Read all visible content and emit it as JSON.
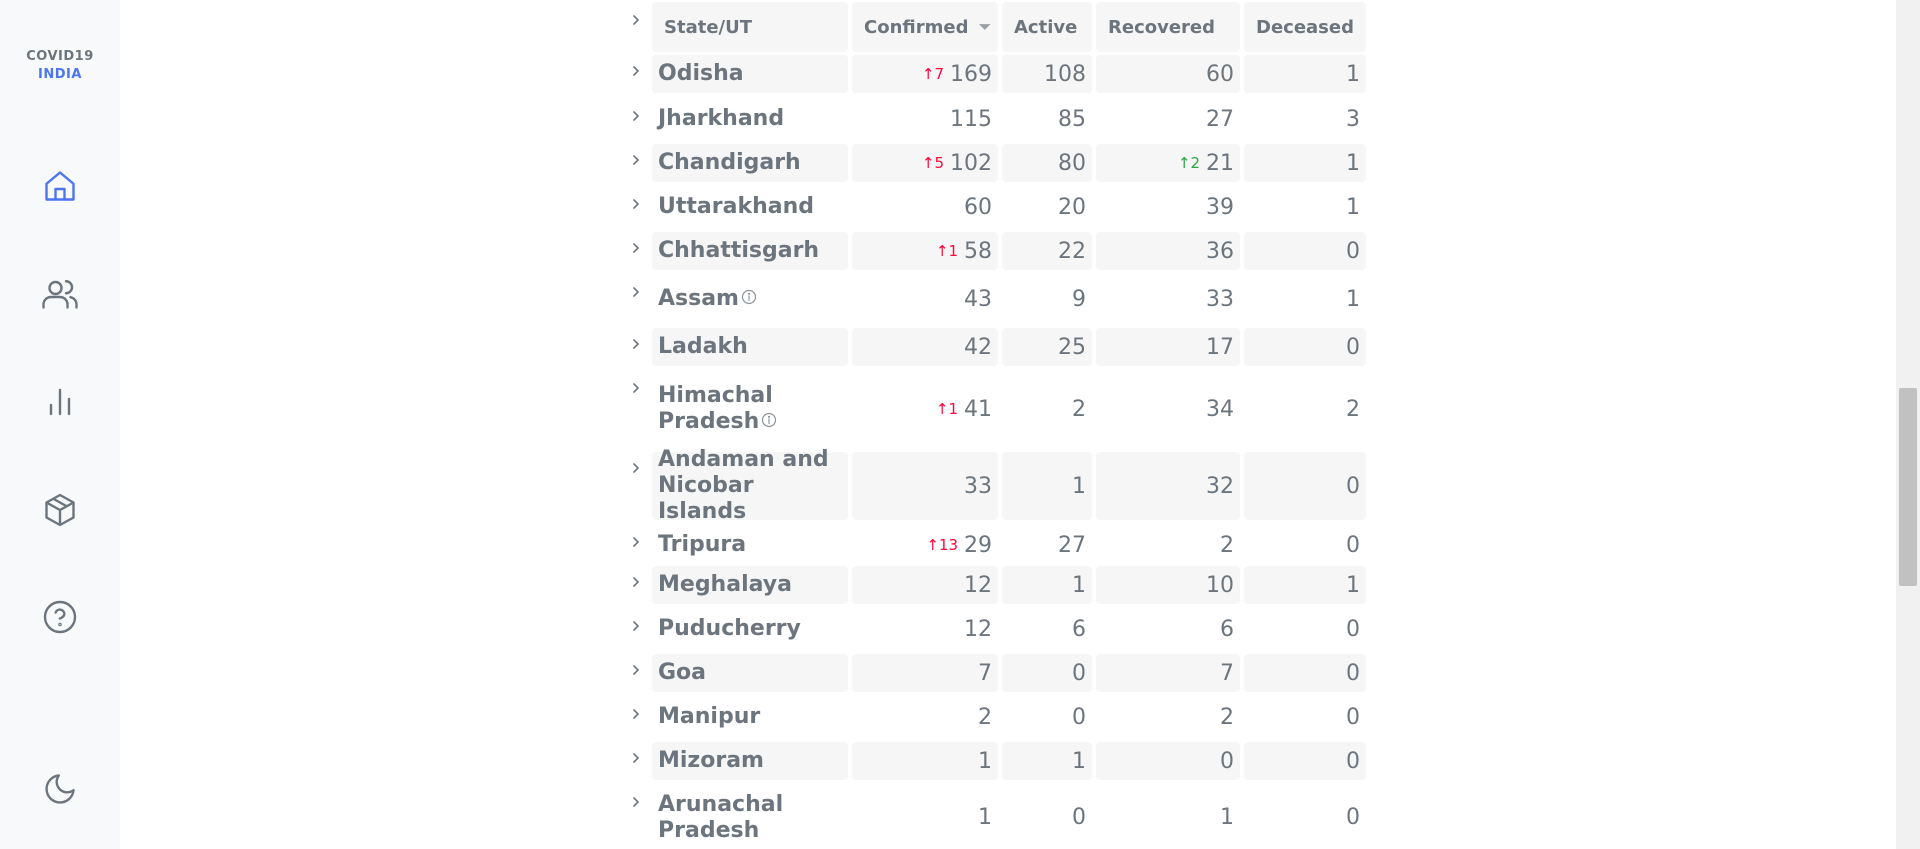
{
  "app": {
    "logo_line1": "COVID19",
    "logo_line2": "INDIA"
  },
  "nav": [
    {
      "icon": "home-icon"
    },
    {
      "icon": "users-icon"
    },
    {
      "icon": "bar-chart-icon"
    },
    {
      "icon": "package-icon"
    },
    {
      "icon": "help-circle-icon"
    },
    {
      "icon": "moon-icon"
    }
  ],
  "colors": {
    "accent": "#4c75f2",
    "delta_red": "#ff073a",
    "delta_green": "#28a745"
  },
  "table": {
    "headers": {
      "state": "State/UT",
      "confirmed": "Confirmed",
      "active": "Active",
      "recovered": "Recovered",
      "deceased": "Deceased"
    },
    "sort_icon": "caret-down-icon",
    "rows": [
      {
        "state": "Odisha",
        "confirmed": "169",
        "confirmed_delta": "↑7",
        "active": "108",
        "recovered": "60",
        "deceased": "1"
      },
      {
        "state": "Jharkhand",
        "confirmed": "115",
        "active": "85",
        "recovered": "27",
        "deceased": "3"
      },
      {
        "state": "Chandigarh",
        "confirmed": "102",
        "confirmed_delta": "↑5",
        "active": "80",
        "recovered": "21",
        "recovered_delta": "↑2",
        "deceased": "1"
      },
      {
        "state": "Uttarakhand",
        "confirmed": "60",
        "active": "20",
        "recovered": "39",
        "deceased": "1"
      },
      {
        "state": "Chhattisgarh",
        "confirmed": "58",
        "confirmed_delta": "↑1",
        "active": "22",
        "recovered": "36",
        "deceased": "0"
      },
      {
        "state": "Assam",
        "info": true,
        "confirmed": "43",
        "active": "9",
        "recovered": "33",
        "deceased": "1"
      },
      {
        "state": "Ladakh",
        "confirmed": "42",
        "active": "25",
        "recovered": "17",
        "deceased": "0"
      },
      {
        "state": "Himachal Pradesh",
        "state_lines": [
          "Himachal",
          "Pradesh"
        ],
        "info": true,
        "confirmed": "41",
        "confirmed_delta": "↑1",
        "active": "2",
        "recovered": "34",
        "deceased": "2"
      },
      {
        "state": "Andaman and Nicobar Islands",
        "state_lines": [
          "Andaman and",
          "Nicobar Islands"
        ],
        "confirmed": "33",
        "active": "1",
        "recovered": "32",
        "deceased": "0"
      },
      {
        "state": "Tripura",
        "confirmed": "29",
        "confirmed_delta": "↑13",
        "active": "27",
        "recovered": "2",
        "deceased": "0"
      },
      {
        "state": "Meghalaya",
        "confirmed": "12",
        "active": "1",
        "recovered": "10",
        "deceased": "1"
      },
      {
        "state": "Puducherry",
        "confirmed": "12",
        "active": "6",
        "recovered": "6",
        "deceased": "0"
      },
      {
        "state": "Goa",
        "confirmed": "7",
        "active": "0",
        "recovered": "7",
        "deceased": "0"
      },
      {
        "state": "Manipur",
        "confirmed": "2",
        "active": "0",
        "recovered": "2",
        "deceased": "0"
      },
      {
        "state": "Mizoram",
        "confirmed": "1",
        "active": "1",
        "recovered": "0",
        "deceased": "0"
      },
      {
        "state": "Arunachal Pradesh",
        "state_lines": [
          "Arunachal",
          "Pradesh"
        ],
        "confirmed": "1",
        "active": "0",
        "recovered": "1",
        "deceased": "0"
      }
    ]
  }
}
